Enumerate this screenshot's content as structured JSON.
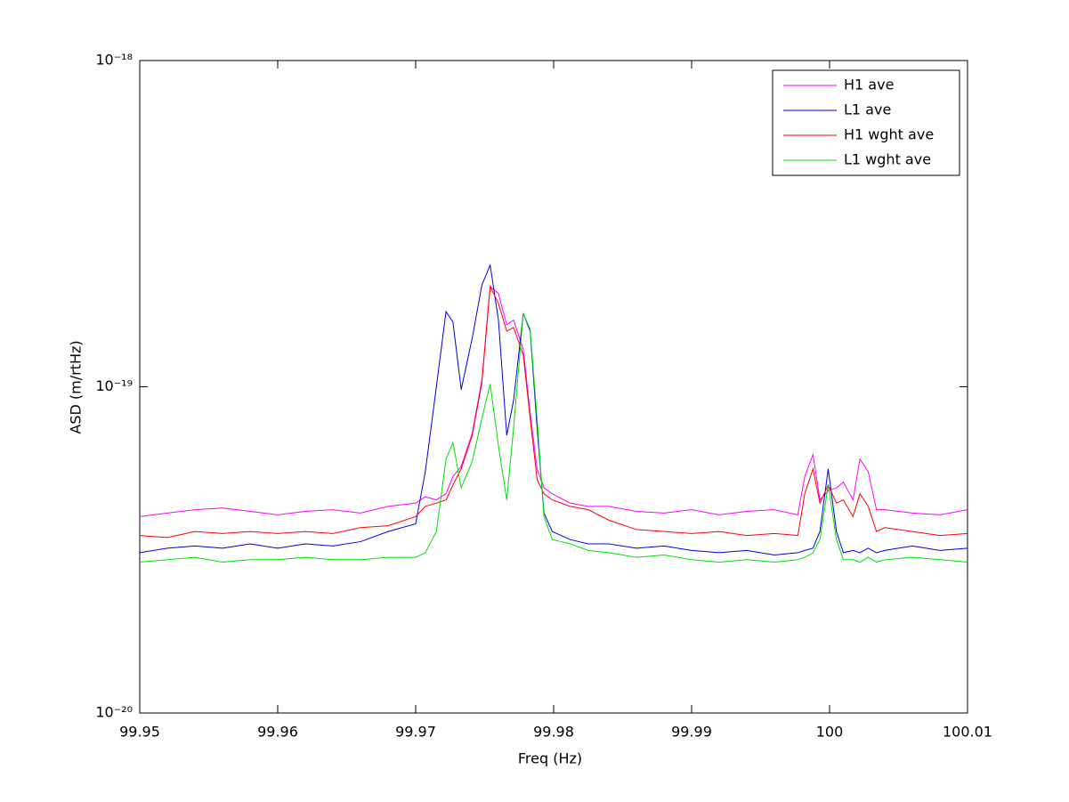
{
  "chart_data": {
    "type": "line",
    "xlabel": "Freq (Hz)",
    "ylabel": "ASD (m/rtHz)",
    "yscale": "log",
    "legend": "northeast",
    "grid": false,
    "xlim": [
      99.95,
      100.01
    ],
    "xticks": [
      99.95,
      99.96,
      99.97,
      99.98,
      99.99,
      100,
      100.01
    ],
    "ylim": [
      1e-20,
      1e-18
    ],
    "yticks": [
      {
        "value": 1e-20,
        "label": "10⁻²⁰"
      },
      {
        "value": 1e-19,
        "label": "10⁻¹⁹"
      },
      {
        "value": 1e-18,
        "label": "10⁻¹⁸"
      }
    ],
    "x": [
      99.95,
      99.952,
      99.954,
      99.956,
      99.958,
      99.96,
      99.962,
      99.964,
      99.966,
      99.968,
      99.97,
      99.9707,
      99.9715,
      99.9722,
      99.9727,
      99.9733,
      99.9741,
      99.9748,
      99.9754,
      99.976,
      99.9766,
      99.9771,
      99.9778,
      99.9783,
      99.9788,
      99.9793,
      99.9799,
      99.9812,
      99.9825,
      99.984,
      99.986,
      99.988,
      99.99,
      99.992,
      99.994,
      99.996,
      99.9977,
      99.9982,
      99.9988,
      99.9993,
      99.9999,
      100.0005,
      100.001,
      100.0017,
      100.0022,
      100.0028,
      100.0034,
      100.004,
      100.006,
      100.008,
      100.01
    ],
    "series": [
      {
        "name": "H1 ave",
        "color": "#ff00ff",
        "values": [
          4e-20,
          4.1e-20,
          4.2e-20,
          4.25e-20,
          4.15e-20,
          4.05e-20,
          4.15e-20,
          4.2e-20,
          4.1e-20,
          4.3e-20,
          4.4e-20,
          4.6e-20,
          4.5e-20,
          4.7e-20,
          5.3e-20,
          5.7e-20,
          7.2e-20,
          1.05e-19,
          2.03e-19,
          1.93e-19,
          1.55e-19,
          1.6e-19,
          1.3e-19,
          8.3e-20,
          5.6e-20,
          4.9e-20,
          4.7e-20,
          4.4e-20,
          4.3e-20,
          4.3e-20,
          4.15e-20,
          4.1e-20,
          4.2e-20,
          4.05e-20,
          4.15e-20,
          4.2e-20,
          4.05e-20,
          5.3e-20,
          6.2e-20,
          4.5e-20,
          4.8e-20,
          4.9e-20,
          5.1e-20,
          4.5e-20,
          6e-20,
          5.5e-20,
          4.2e-20,
          4.2e-20,
          4.1e-20,
          4.05e-20,
          4.2e-20
        ]
      },
      {
        "name": "L1 ave",
        "color": "#0000e0",
        "values": [
          3.1e-20,
          3.2e-20,
          3.25e-20,
          3.2e-20,
          3.3e-20,
          3.2e-20,
          3.3e-20,
          3.25e-20,
          3.35e-20,
          3.6e-20,
          3.8e-20,
          5.5e-20,
          1e-19,
          1.7e-19,
          1.58e-19,
          9.8e-20,
          1.41e-19,
          2.05e-19,
          2.36e-19,
          1.6e-19,
          7.1e-20,
          9.1e-20,
          1.68e-19,
          1.48e-19,
          7.5e-20,
          4.1e-20,
          3.6e-20,
          3.4e-20,
          3.3e-20,
          3.3e-20,
          3.2e-20,
          3.25e-20,
          3.15e-20,
          3.1e-20,
          3.15e-20,
          3.05e-20,
          3.1e-20,
          3.15e-20,
          3.2e-20,
          3.6e-20,
          5.6e-20,
          3.6e-20,
          3.1e-20,
          3.15e-20,
          3.1e-20,
          3.2e-20,
          3.1e-20,
          3.15e-20,
          3.25e-20,
          3.15e-20,
          3.2e-20
        ]
      },
      {
        "name": "H1 wght ave",
        "color": "#ff0000",
        "values": [
          3.5e-20,
          3.45e-20,
          3.6e-20,
          3.55e-20,
          3.6e-20,
          3.55e-20,
          3.6e-20,
          3.55e-20,
          3.7e-20,
          3.75e-20,
          4e-20,
          4.3e-20,
          4.4e-20,
          4.5e-20,
          5e-20,
          5.6e-20,
          7.1e-20,
          1.03e-19,
          2.03e-19,
          1.8e-19,
          1.48e-19,
          1.52e-19,
          1.25e-19,
          8e-20,
          5.2e-20,
          4.7e-20,
          4.5e-20,
          4.3e-20,
          4.2e-20,
          3.9e-20,
          3.65e-20,
          3.6e-20,
          3.55e-20,
          3.6e-20,
          3.5e-20,
          3.55e-20,
          3.5e-20,
          4.7e-20,
          5.6e-20,
          4.4e-20,
          5e-20,
          4.4e-20,
          4.5e-20,
          4e-20,
          4.7e-20,
          4.3e-20,
          3.6e-20,
          3.7e-20,
          3.6e-20,
          3.5e-20,
          3.55e-20
        ]
      },
      {
        "name": "L1 wght ave",
        "color": "#00e000",
        "values": [
          2.9e-20,
          2.95e-20,
          3e-20,
          2.9e-20,
          2.95e-20,
          2.95e-20,
          3e-20,
          2.95e-20,
          2.95e-20,
          3e-20,
          3e-20,
          3.1e-20,
          3.6e-20,
          6e-20,
          6.75e-20,
          4.9e-20,
          5.9e-20,
          8e-20,
          1.02e-19,
          6.6e-20,
          4.5e-20,
          7.5e-20,
          1.68e-19,
          1.5e-19,
          8e-20,
          4e-20,
          3.4e-20,
          3.3e-20,
          3.15e-20,
          3.1e-20,
          3e-20,
          3.05e-20,
          2.95e-20,
          2.9e-20,
          2.95e-20,
          2.9e-20,
          2.95e-20,
          3e-20,
          3.1e-20,
          3.4e-20,
          5e-20,
          3.4e-20,
          2.95e-20,
          2.95e-20,
          2.9e-20,
          3e-20,
          2.9e-20,
          2.95e-20,
          3e-20,
          2.95e-20,
          2.9e-20
        ]
      }
    ]
  }
}
